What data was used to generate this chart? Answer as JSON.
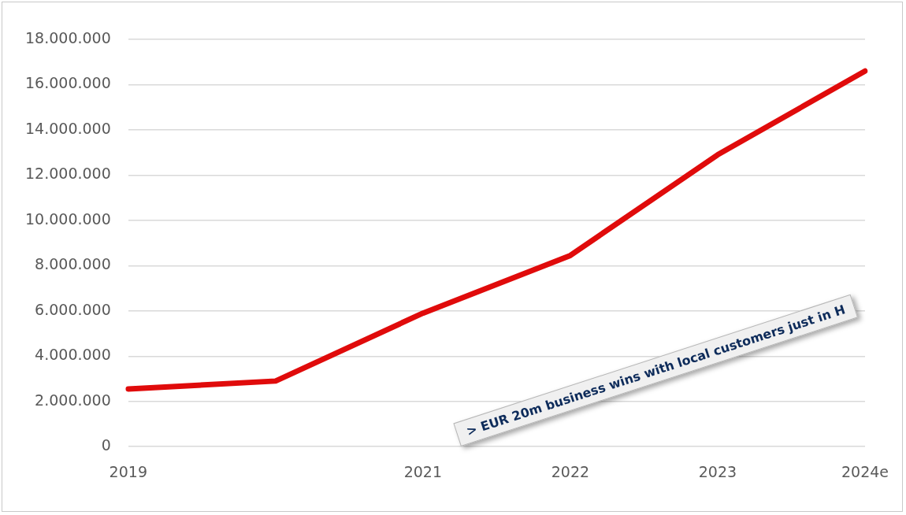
{
  "chart_data": {
    "type": "line",
    "categories": [
      "2019",
      null,
      "2021",
      "2022",
      "2023",
      "2024e"
    ],
    "series": [
      {
        "color": "#e00b0b",
        "values": [
          2550000,
          2900000,
          5900000,
          8450000,
          12900000,
          16600000
        ]
      }
    ],
    "ylim": [
      0,
      18000000
    ],
    "yticks": [
      {
        "value": 0,
        "label": "0"
      },
      {
        "value": 2000000,
        "label": "2.000.000"
      },
      {
        "value": 4000000,
        "label": "4.000.000"
      },
      {
        "value": 6000000,
        "label": "6.000.000"
      },
      {
        "value": 8000000,
        "label": "8.000.000"
      },
      {
        "value": 10000000,
        "label": "10.000.000"
      },
      {
        "value": 12000000,
        "label": "12.000.000"
      },
      {
        "value": 14000000,
        "label": "14.000.000"
      },
      {
        "value": 16000000,
        "label": "16.000.000"
      },
      {
        "value": 18000000,
        "label": "18.000.000"
      }
    ],
    "grid": "y",
    "legend": false,
    "marker": "none",
    "line_style": "solid",
    "annotations": [
      "> EUR 20m business wins with local customers just in H"
    ]
  }
}
